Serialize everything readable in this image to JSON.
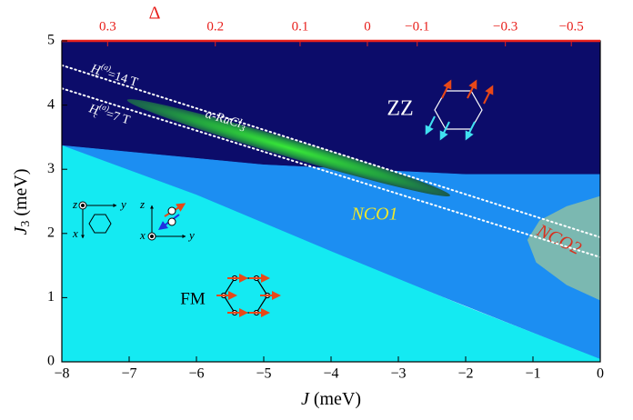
{
  "chart_data": {
    "type": "phase",
    "xlabel": {
      "symbol": "J",
      "unit": " (meV)"
    },
    "ylabel": {
      "symbol": "J",
      "sub": "3",
      "unit": " (meV)"
    },
    "x2label": "Δ",
    "axis2_color": "#e8201c",
    "xlim": [
      -8,
      0
    ],
    "xticks": [
      {
        "value": -8,
        "label": "−8"
      },
      {
        "value": -7,
        "label": "−7"
      },
      {
        "value": -6,
        "label": "−6"
      },
      {
        "value": -5,
        "label": "−5"
      },
      {
        "value": -4,
        "label": "−4"
      },
      {
        "value": -3,
        "label": "−3"
      },
      {
        "value": -2,
        "label": "−2"
      },
      {
        "value": -1,
        "label": "−1"
      },
      0
    ],
    "ylim": [
      0,
      5
    ],
    "yticks": [
      0,
      1,
      2,
      3,
      4,
      5
    ],
    "x2ticks": [
      {
        "value": -7.32,
        "label": "0.3"
      },
      {
        "value": -5.72,
        "label": "0.2"
      },
      {
        "value": -4.46,
        "label": "0.1"
      },
      {
        "value": -3.46,
        "label": "0"
      },
      {
        "value": -2.72,
        "label": "−0.1"
      },
      {
        "value": -1.41,
        "label": "−0.3"
      },
      {
        "value": -0.43,
        "label": "−0.5"
      }
    ],
    "regions": [
      {
        "name": "ZZ",
        "color": "#0c0c6a",
        "label_color": "#ffffff",
        "x": [
          -8,
          0,
          0,
          -2,
          -3,
          -5,
          -8
        ],
        "y": [
          5,
          5,
          2.92,
          2.92,
          2.97,
          3.07,
          3.37
        ]
      },
      {
        "name": "NCO1",
        "color": "#1c8ef2",
        "label_color": "#f0e82a",
        "x": [
          -8,
          -5,
          -3,
          -2,
          0,
          0
        ],
        "y": [
          3.37,
          3.07,
          2.97,
          2.92,
          2.92,
          0.04
        ]
      },
      {
        "name": "FM",
        "color": "#14eaf2",
        "label_color": "#000000",
        "x": [
          -8,
          -6,
          -4,
          -2,
          0,
          0,
          -8
        ],
        "y": [
          3.37,
          2.6,
          1.72,
          0.86,
          0.04,
          0,
          0
        ]
      },
      {
        "name": "NCO2",
        "color": "#7bb8b1",
        "label_color": "#d8301e",
        "x": [
          0,
          -0.5,
          -0.9,
          -1.08,
          -0.95,
          -0.5,
          0
        ],
        "y": [
          2.58,
          2.42,
          2.2,
          1.9,
          1.55,
          1.2,
          0.96
        ]
      }
    ],
    "field_lines": [
      {
        "label": {
          "H": "H",
          "sub": "c",
          "sup": "(a)",
          "rest": "=14 T"
        },
        "x": [
          -8,
          0
        ],
        "y": [
          4.62,
          1.94
        ]
      },
      {
        "label": {
          "H": "H",
          "sub": "c",
          "sup": "(a)",
          "rest": "=7 T"
        },
        "x": [
          -8,
          0
        ],
        "y": [
          4.26,
          1.63
        ]
      }
    ],
    "ellipse": {
      "label": "α-RuCl",
      "label_sub": "3",
      "x1": -7.03,
      "y1": 4.08,
      "x2": -2.23,
      "y2": 2.59
    },
    "icon_labels": [
      "z",
      "y",
      "x",
      "z",
      "x",
      "y"
    ]
  }
}
